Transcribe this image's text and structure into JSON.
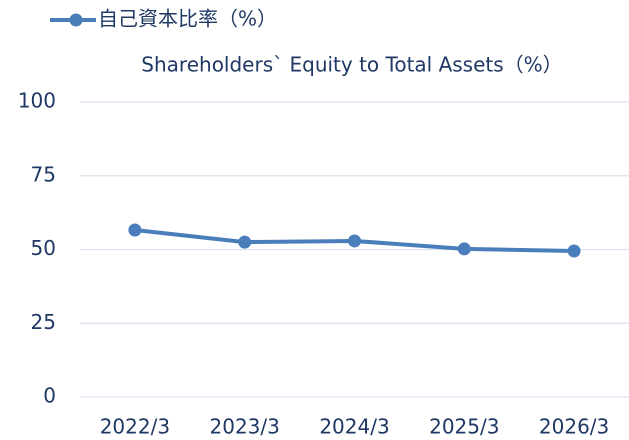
{
  "chart_data": {
    "type": "line",
    "subtitle": "Shareholders` Equity to Total Assets（%）",
    "categories": [
      "2022/3",
      "2023/3",
      "2024/3",
      "2025/3",
      "2026/3"
    ],
    "series": [
      {
        "name": "自己資本比率（%）",
        "color": "#4a7ebb",
        "values": [
          56.6,
          52.5,
          52.9,
          50.2,
          49.5
        ]
      }
    ],
    "ylim": [
      0,
      100
    ],
    "yticks": [
      0,
      25,
      50,
      75,
      100
    ],
    "grid": true,
    "legend": "top-left"
  }
}
